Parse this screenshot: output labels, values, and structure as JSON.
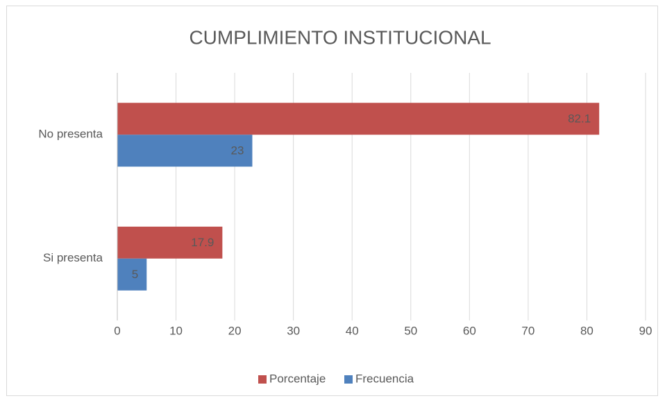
{
  "chart_data": {
    "type": "bar",
    "orientation": "horizontal",
    "title": "CUMPLIMIENTO INSTITUCIONAL",
    "categories": [
      "No presenta",
      "Si presenta"
    ],
    "series": [
      {
        "name": "Porcentaje",
        "color": "#c0504d",
        "values": [
          82.1,
          17.9
        ]
      },
      {
        "name": "Frecuencia",
        "color": "#4f81bd",
        "values": [
          23,
          5
        ]
      }
    ],
    "xlim": [
      0,
      90
    ],
    "xticks": [
      0,
      10,
      20,
      30,
      40,
      50,
      60,
      70,
      80,
      90
    ],
    "grid": true,
    "legend": "bottom"
  }
}
